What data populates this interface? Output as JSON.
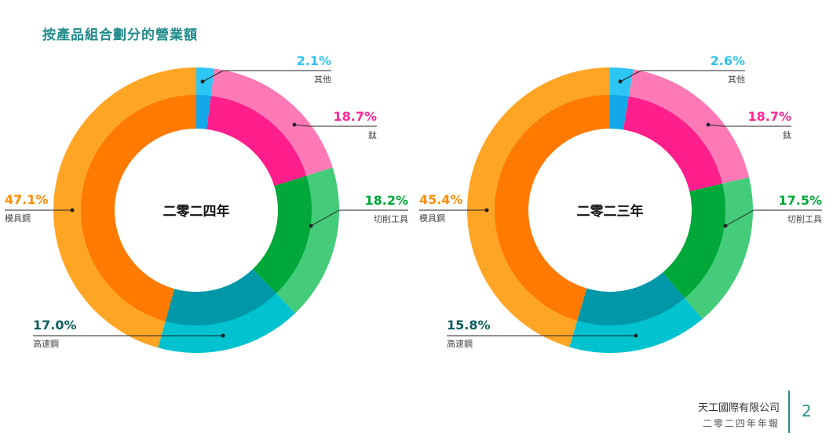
{
  "title": "按產品組合劃分的營業額",
  "colors": {
    "other_outer": "#2dc6f2",
    "other_inner": "#13a8ea",
    "titanium_outer": "#ff79b7",
    "titanium_inner": "#ff1e8c",
    "cutting_outer": "#45cc7a",
    "cutting_inner": "#00a83a",
    "hss_outer": "#00c3cf",
    "hss_inner": "#0098a8",
    "mould_outer": "#ffa526",
    "mould_inner": "#ff7a00",
    "label_other": "#2cc3ef",
    "label_titanium": "#ff2896",
    "label_cutting": "#00a83a",
    "label_hss": "#0e5e5e",
    "label_mould": "#ff8c00",
    "title": "#1f8a8a"
  },
  "chart_data": [
    {
      "type": "pie",
      "center_label": "二零二四年",
      "segments": [
        {
          "name": "其他",
          "value": 2.1,
          "label": "2.1%"
        },
        {
          "name": "鈦",
          "value": 18.7,
          "label": "18.7%"
        },
        {
          "name": "切削工具",
          "value": 18.2,
          "label": "18.2%"
        },
        {
          "name": "高速鋼",
          "value": 17.0,
          "label": "17.0%"
        },
        {
          "name": "模具鋼",
          "value": 47.1,
          "label": "47.1%"
        }
      ]
    },
    {
      "type": "pie",
      "center_label": "二零二三年",
      "segments": [
        {
          "name": "其他",
          "value": 2.6,
          "label": "2.6%"
        },
        {
          "name": "鈦",
          "value": 18.7,
          "label": "18.7%"
        },
        {
          "name": "切削工具",
          "value": 17.5,
          "label": "17.5%"
        },
        {
          "name": "高速鋼",
          "value": 15.8,
          "label": "15.8%"
        },
        {
          "name": "模具鋼",
          "value": 45.4,
          "label": "45.4%"
        }
      ]
    }
  ],
  "footer": {
    "company": "天工國際有限公司",
    "report": "二零二四年年報",
    "page_number": "2"
  }
}
